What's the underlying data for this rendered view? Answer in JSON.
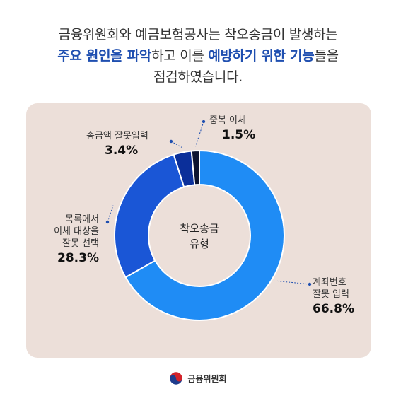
{
  "headline": {
    "line1": "금융위원회와 예금보험공사는 착오송금이 발생하는",
    "line2_em1": "주요 원인을 파악",
    "line2_mid": "하고 이를 ",
    "line2_em2": "예방하기 위한 기능",
    "line2_end": "들을",
    "line3": "점검하였습니다."
  },
  "chart_data": {
    "type": "pie",
    "title": "착오송금 유형",
    "center_label": [
      "착오송금",
      "유형"
    ],
    "slices": [
      {
        "name": "계좌번호 잘못 입력",
        "label_lines": [
          "계좌번호",
          "잘못 입력"
        ],
        "value": 66.8,
        "value_text": "66.8%",
        "color": "#1f8cf5"
      },
      {
        "name": "목록에서 이체 대상을 잘못 선택",
        "label_lines": [
          "목록에서",
          "이체 대상을",
          "잘못 선택"
        ],
        "value": 28.3,
        "value_text": "28.3%",
        "color": "#1a56d6"
      },
      {
        "name": "송금액 잘못입력",
        "label_lines": [
          "송금액 잘못입력"
        ],
        "value": 3.4,
        "value_text": "3.4%",
        "color": "#0b2f9a"
      },
      {
        "name": "중복 이체",
        "label_lines": [
          "중복 이체"
        ],
        "value": 1.5,
        "value_text": "1.5%",
        "color": "#0d1430"
      }
    ]
  },
  "footer": {
    "org_name": "금융위원회",
    "emblem": "taegeuk-emblem-icon"
  }
}
